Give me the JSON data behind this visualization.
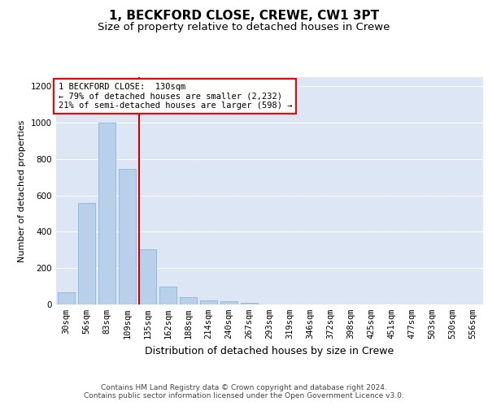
{
  "title_line1": "1, BECKFORD CLOSE, CREWE, CW1 3PT",
  "title_line2": "Size of property relative to detached houses in Crewe",
  "xlabel": "Distribution of detached houses by size in Crewe",
  "ylabel": "Number of detached properties",
  "bar_color": "#b8d0ea",
  "bar_edge_color": "#7aafd4",
  "background_color": "#dce6f5",
  "categories": [
    "30sqm",
    "56sqm",
    "83sqm",
    "109sqm",
    "135sqm",
    "162sqm",
    "188sqm",
    "214sqm",
    "240sqm",
    "267sqm",
    "293sqm",
    "319sqm",
    "346sqm",
    "372sqm",
    "398sqm",
    "425sqm",
    "451sqm",
    "477sqm",
    "503sqm",
    "530sqm",
    "556sqm"
  ],
  "values": [
    65,
    560,
    1000,
    745,
    305,
    100,
    38,
    24,
    16,
    8,
    2,
    0,
    0,
    0,
    0,
    0,
    0,
    0,
    0,
    0,
    0
  ],
  "ylim": [
    0,
    1250
  ],
  "yticks": [
    0,
    200,
    400,
    600,
    800,
    1000,
    1200
  ],
  "marker_color": "#cc0000",
  "annotation_text": "1 BECKFORD CLOSE:  130sqm\n← 79% of detached houses are smaller (2,232)\n21% of semi-detached houses are larger (598) →",
  "footer_text": "Contains HM Land Registry data © Crown copyright and database right 2024.\nContains public sector information licensed under the Open Government Licence v3.0.",
  "grid_color": "#ffffff",
  "title_fontsize": 11,
  "subtitle_fontsize": 9.5,
  "ylabel_fontsize": 8,
  "xlabel_fontsize": 9,
  "tick_fontsize": 7.5,
  "annotation_fontsize": 7.5,
  "footer_fontsize": 6.5
}
